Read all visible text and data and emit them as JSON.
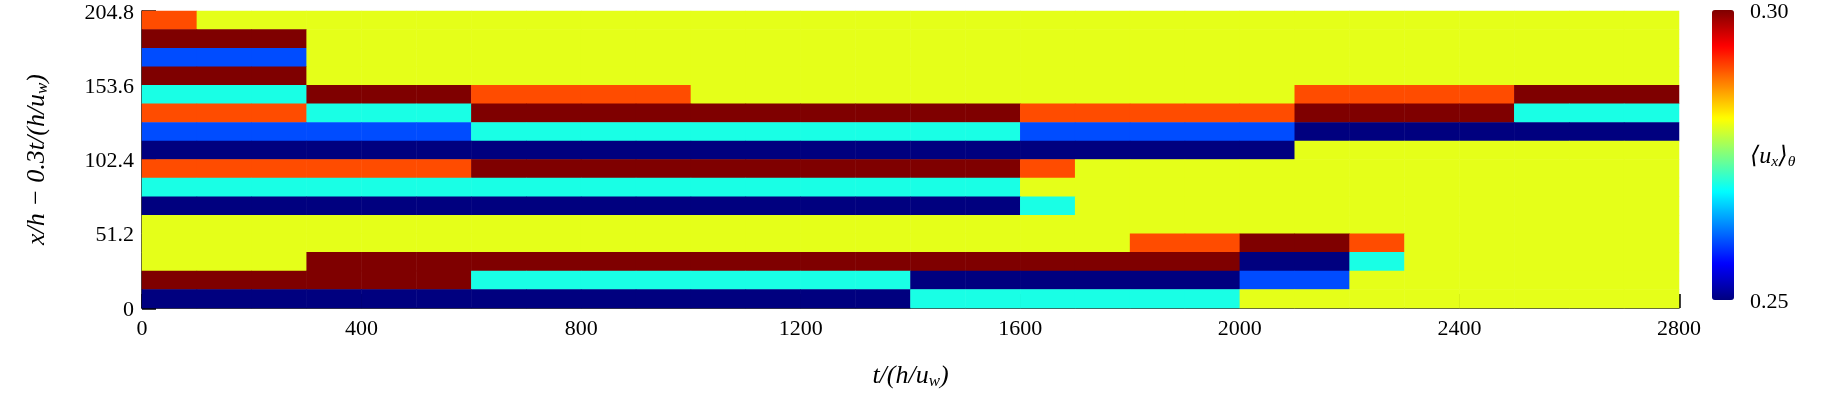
{
  "chart_data": {
    "type": "heatmap",
    "xlabel": "t/(h/u$_{w}$)",
    "ylabel": "x/h − 0.3t/(h/u$_{w}$)",
    "clabel": "⟨u$_{x}$⟩$_{θ}$",
    "cells": [
      [
        0.29,
        0.28,
        0.28,
        0.28,
        0.28,
        0.28,
        0.28,
        0.28,
        0.28,
        0.28,
        0.28,
        0.28,
        0.28,
        0.28,
        0.28,
        0.28,
        0.28,
        0.28,
        0.28,
        0.28,
        0.28,
        0.28,
        0.28,
        0.28,
        0.28,
        0.28,
        0.28,
        0.28
      ],
      [
        0.3,
        0.3,
        0.3,
        0.28,
        0.28,
        0.28,
        0.28,
        0.28,
        0.28,
        0.28,
        0.28,
        0.28,
        0.28,
        0.28,
        0.28,
        0.28,
        0.28,
        0.28,
        0.28,
        0.28,
        0.28,
        0.28,
        0.28,
        0.28,
        0.28,
        0.28,
        0.28,
        0.28
      ],
      [
        0.26,
        0.26,
        0.26,
        0.28,
        0.28,
        0.28,
        0.28,
        0.28,
        0.28,
        0.28,
        0.28,
        0.28,
        0.28,
        0.28,
        0.28,
        0.28,
        0.28,
        0.28,
        0.28,
        0.28,
        0.28,
        0.28,
        0.28,
        0.28,
        0.28,
        0.28,
        0.28,
        0.28
      ],
      [
        0.3,
        0.3,
        0.3,
        0.28,
        0.28,
        0.28,
        0.28,
        0.28,
        0.28,
        0.28,
        0.28,
        0.28,
        0.28,
        0.28,
        0.28,
        0.28,
        0.28,
        0.28,
        0.28,
        0.28,
        0.28,
        0.28,
        0.28,
        0.28,
        0.28,
        0.28,
        0.28,
        0.28
      ],
      [
        0.27,
        0.27,
        0.27,
        0.3,
        0.3,
        0.3,
        0.29,
        0.29,
        0.29,
        0.29,
        0.28,
        0.28,
        0.28,
        0.28,
        0.28,
        0.28,
        0.28,
        0.28,
        0.28,
        0.28,
        0.28,
        0.29,
        0.29,
        0.29,
        0.29,
        0.3,
        0.3,
        0.3
      ],
      [
        0.29,
        0.29,
        0.29,
        0.27,
        0.27,
        0.27,
        0.3,
        0.3,
        0.3,
        0.3,
        0.3,
        0.3,
        0.3,
        0.3,
        0.3,
        0.3,
        0.29,
        0.29,
        0.29,
        0.29,
        0.29,
        0.3,
        0.3,
        0.3,
        0.3,
        0.27,
        0.27,
        0.27
      ],
      [
        0.26,
        0.26,
        0.26,
        0.26,
        0.26,
        0.26,
        0.27,
        0.27,
        0.27,
        0.27,
        0.27,
        0.27,
        0.27,
        0.27,
        0.27,
        0.27,
        0.26,
        0.26,
        0.26,
        0.26,
        0.26,
        0.25,
        0.25,
        0.25,
        0.25,
        0.25,
        0.25,
        0.25
      ],
      [
        0.25,
        0.25,
        0.25,
        0.25,
        0.25,
        0.25,
        0.25,
        0.25,
        0.25,
        0.25,
        0.25,
        0.25,
        0.25,
        0.25,
        0.25,
        0.25,
        0.25,
        0.25,
        0.25,
        0.25,
        0.25,
        0.28,
        0.28,
        0.28,
        0.28,
        0.28,
        0.28,
        0.28
      ],
      [
        0.29,
        0.29,
        0.29,
        0.29,
        0.29,
        0.29,
        0.3,
        0.3,
        0.3,
        0.3,
        0.3,
        0.3,
        0.3,
        0.3,
        0.3,
        0.3,
        0.29,
        0.28,
        0.28,
        0.28,
        0.28,
        0.28,
        0.28,
        0.28,
        0.28,
        0.28,
        0.28,
        0.28
      ],
      [
        0.27,
        0.27,
        0.27,
        0.27,
        0.27,
        0.27,
        0.27,
        0.27,
        0.27,
        0.27,
        0.27,
        0.27,
        0.27,
        0.27,
        0.27,
        0.27,
        0.28,
        0.28,
        0.28,
        0.28,
        0.28,
        0.28,
        0.28,
        0.28,
        0.28,
        0.28,
        0.28,
        0.28
      ],
      [
        0.25,
        0.25,
        0.25,
        0.25,
        0.25,
        0.25,
        0.25,
        0.25,
        0.25,
        0.25,
        0.25,
        0.25,
        0.25,
        0.25,
        0.25,
        0.25,
        0.27,
        0.28,
        0.28,
        0.28,
        0.28,
        0.28,
        0.28,
        0.28,
        0.28,
        0.28,
        0.28,
        0.28
      ],
      [
        0.28,
        0.28,
        0.28,
        0.28,
        0.28,
        0.28,
        0.28,
        0.28,
        0.28,
        0.28,
        0.28,
        0.28,
        0.28,
        0.28,
        0.28,
        0.28,
        0.28,
        0.28,
        0.28,
        0.28,
        0.28,
        0.28,
        0.28,
        0.28,
        0.28,
        0.28,
        0.28,
        0.28
      ],
      [
        0.28,
        0.28,
        0.28,
        0.28,
        0.28,
        0.28,
        0.28,
        0.28,
        0.28,
        0.28,
        0.28,
        0.28,
        0.28,
        0.28,
        0.28,
        0.28,
        0.28,
        0.28,
        0.29,
        0.29,
        0.3,
        0.3,
        0.29,
        0.28,
        0.28,
        0.28,
        0.28,
        0.28
      ],
      [
        0.28,
        0.28,
        0.28,
        0.3,
        0.3,
        0.3,
        0.3,
        0.3,
        0.3,
        0.3,
        0.3,
        0.3,
        0.3,
        0.3,
        0.3,
        0.3,
        0.3,
        0.3,
        0.3,
        0.3,
        0.25,
        0.25,
        0.27,
        0.28,
        0.28,
        0.28,
        0.28,
        0.28
      ],
      [
        0.3,
        0.3,
        0.3,
        0.3,
        0.3,
        0.3,
        0.27,
        0.27,
        0.27,
        0.27,
        0.27,
        0.27,
        0.27,
        0.27,
        0.25,
        0.25,
        0.25,
        0.25,
        0.25,
        0.25,
        0.26,
        0.26,
        0.28,
        0.28,
        0.28,
        0.28,
        0.28,
        0.28
      ],
      [
        0.25,
        0.25,
        0.25,
        0.25,
        0.25,
        0.25,
        0.25,
        0.25,
        0.25,
        0.25,
        0.25,
        0.25,
        0.25,
        0.25,
        0.27,
        0.27,
        0.27,
        0.27,
        0.27,
        0.27,
        0.28,
        0.28,
        0.28,
        0.28,
        0.28,
        0.28,
        0.28,
        0.28
      ]
    ],
    "clim": [
      0.25,
      0.3
    ],
    "cticks": [
      {
        "value": 0.25,
        "label": "0.25"
      },
      {
        "value": 0.3,
        "label": "0.30"
      }
    ],
    "xlim": [
      0,
      2800
    ],
    "xticks": [
      0,
      400,
      800,
      1200,
      1600,
      2000,
      2400,
      2800
    ],
    "ylim": [
      0,
      204.8
    ],
    "yticks": [
      0,
      51.2,
      102.4,
      153.6,
      204.8
    ]
  }
}
